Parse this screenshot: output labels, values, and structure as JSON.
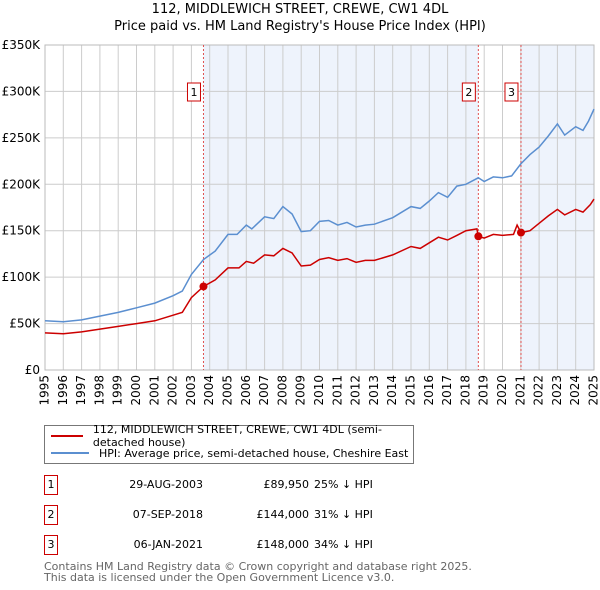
{
  "chart_data": {
    "type": "line",
    "title": "112, MIDDLEWICH STREET, CREWE, CW1 4DL",
    "subtitle": "Price paid vs. HM Land Registry's House Price Index (HPI)",
    "xlim": [
      1995,
      2025
    ],
    "ylim": [
      0,
      350000
    ],
    "x_ticks": [
      "1995",
      "1996",
      "1997",
      "1998",
      "1999",
      "2000",
      "2001",
      "2002",
      "2003",
      "2004",
      "2005",
      "2006",
      "2007",
      "2008",
      "2009",
      "2010",
      "2011",
      "2012",
      "2013",
      "2014",
      "2015",
      "2016",
      "2017",
      "2018",
      "2019",
      "2020",
      "2021",
      "2022",
      "2023",
      "2024",
      "2025"
    ],
    "y_ticks": [
      {
        "v": 0,
        "label": "£0"
      },
      {
        "v": 50000,
        "label": "£50K"
      },
      {
        "v": 100000,
        "label": "£100K"
      },
      {
        "v": 150000,
        "label": "£150K"
      },
      {
        "v": 200000,
        "label": "£200K"
      },
      {
        "v": 250000,
        "label": "£250K"
      },
      {
        "v": 300000,
        "label": "£300K"
      },
      {
        "v": 350000,
        "label": "£350K"
      }
    ],
    "grid": true,
    "series": [
      {
        "name": "112, MIDDLEWICH STREET, CREWE, CW1 4DL (semi-detached house)",
        "color": "#cc0000",
        "x": [
          1995,
          1996,
          1997,
          1998,
          1999,
          2000,
          2001,
          2002,
          2002.5,
          2003,
          2003.66,
          2004.3,
          2005,
          2005.6,
          2006,
          2006.4,
          2007,
          2007.5,
          2008,
          2008.5,
          2009,
          2009.5,
          2010,
          2010.5,
          2011,
          2011.5,
          2012,
          2012.5,
          2013,
          2014,
          2015,
          2015.5,
          2016,
          2016.5,
          2017,
          2017.5,
          2018,
          2018.6,
          2018.68,
          2019,
          2019.5,
          2020,
          2020.6,
          2020.8,
          2021.01,
          2021.5,
          2022,
          2022.5,
          2023,
          2023.4,
          2024,
          2024.4,
          2024.8,
          2025
        ],
        "y": [
          40,
          39,
          41,
          44,
          47,
          50,
          53,
          59,
          62,
          78,
          89.95,
          97,
          110,
          110,
          117,
          115,
          124,
          123,
          131,
          126,
          112,
          113,
          119,
          121,
          118,
          120,
          116,
          118,
          118,
          124,
          133,
          131,
          137,
          143,
          140,
          145,
          150,
          152,
          144,
          142,
          146,
          145,
          146,
          156,
          148,
          150,
          158,
          166,
          173,
          167,
          173,
          170,
          178,
          184
        ]
      },
      {
        "name": "HPI: Average price, semi-detached house, Cheshire East",
        "color": "#5b8fd0",
        "x": [
          1995,
          1996,
          1997,
          1998,
          1999,
          2000,
          2001,
          2002,
          2002.5,
          2003,
          2003.66,
          2004.3,
          2005,
          2005.5,
          2006,
          2006.3,
          2007,
          2007.5,
          2008,
          2008.5,
          2009,
          2009.5,
          2010,
          2010.5,
          2011,
          2011.5,
          2012,
          2012.5,
          2013,
          2014,
          2015,
          2015.5,
          2016,
          2016.5,
          2017,
          2017.5,
          2018,
          2018.68,
          2019,
          2019.5,
          2020,
          2020.5,
          2021,
          2021.5,
          2022,
          2022.5,
          2023,
          2023.4,
          2024,
          2024.4,
          2024.7,
          2025
        ],
        "y": [
          53,
          52,
          54,
          58,
          62,
          67,
          72,
          80,
          85,
          103,
          119,
          128,
          146,
          146,
          156,
          152,
          165,
          163,
          176,
          168,
          149,
          150,
          160,
          161,
          156,
          159,
          154,
          156,
          157,
          164,
          176,
          174,
          182,
          191,
          186,
          198,
          200,
          207,
          203,
          208,
          207,
          209,
          222,
          232,
          240,
          252,
          265,
          253,
          262,
          258,
          268,
          281
        ]
      }
    ],
    "y_units": "thousands GBP",
    "shaded_ranges": [
      [
        2003.66,
        2018.68
      ],
      [
        2021.01,
        2025
      ]
    ],
    "markers": [
      {
        "label": "1",
        "x": 2003.66,
        "y": 89950
      },
      {
        "label": "2",
        "x": 2018.68,
        "y": 144000
      },
      {
        "label": "3",
        "x": 2021.01,
        "y": 148000
      }
    ]
  },
  "title_line1": "112, MIDDLEWICH STREET, CREWE, CW1 4DL",
  "title_line2": "Price paid vs. HM Land Registry's House Price Index (HPI)",
  "legend": {
    "red": "112, MIDDLEWICH STREET, CREWE, CW1 4DL (semi-detached house)",
    "blue": "HPI: Average price, semi-detached house, Cheshire East"
  },
  "sales": [
    {
      "num": "1",
      "date": "29-AUG-2003",
      "price": "£89,950",
      "hpi": "25% ↓ HPI"
    },
    {
      "num": "2",
      "date": "07-SEP-2018",
      "price": "£144,000",
      "hpi": "31% ↓ HPI"
    },
    {
      "num": "3",
      "date": "06-JAN-2021",
      "price": "£148,000",
      "hpi": "34% ↓ HPI"
    }
  ],
  "footer1": "Contains HM Land Registry data © Crown copyright and database right 2025.",
  "footer2": "This data is licensed under the Open Government Licence v3.0."
}
